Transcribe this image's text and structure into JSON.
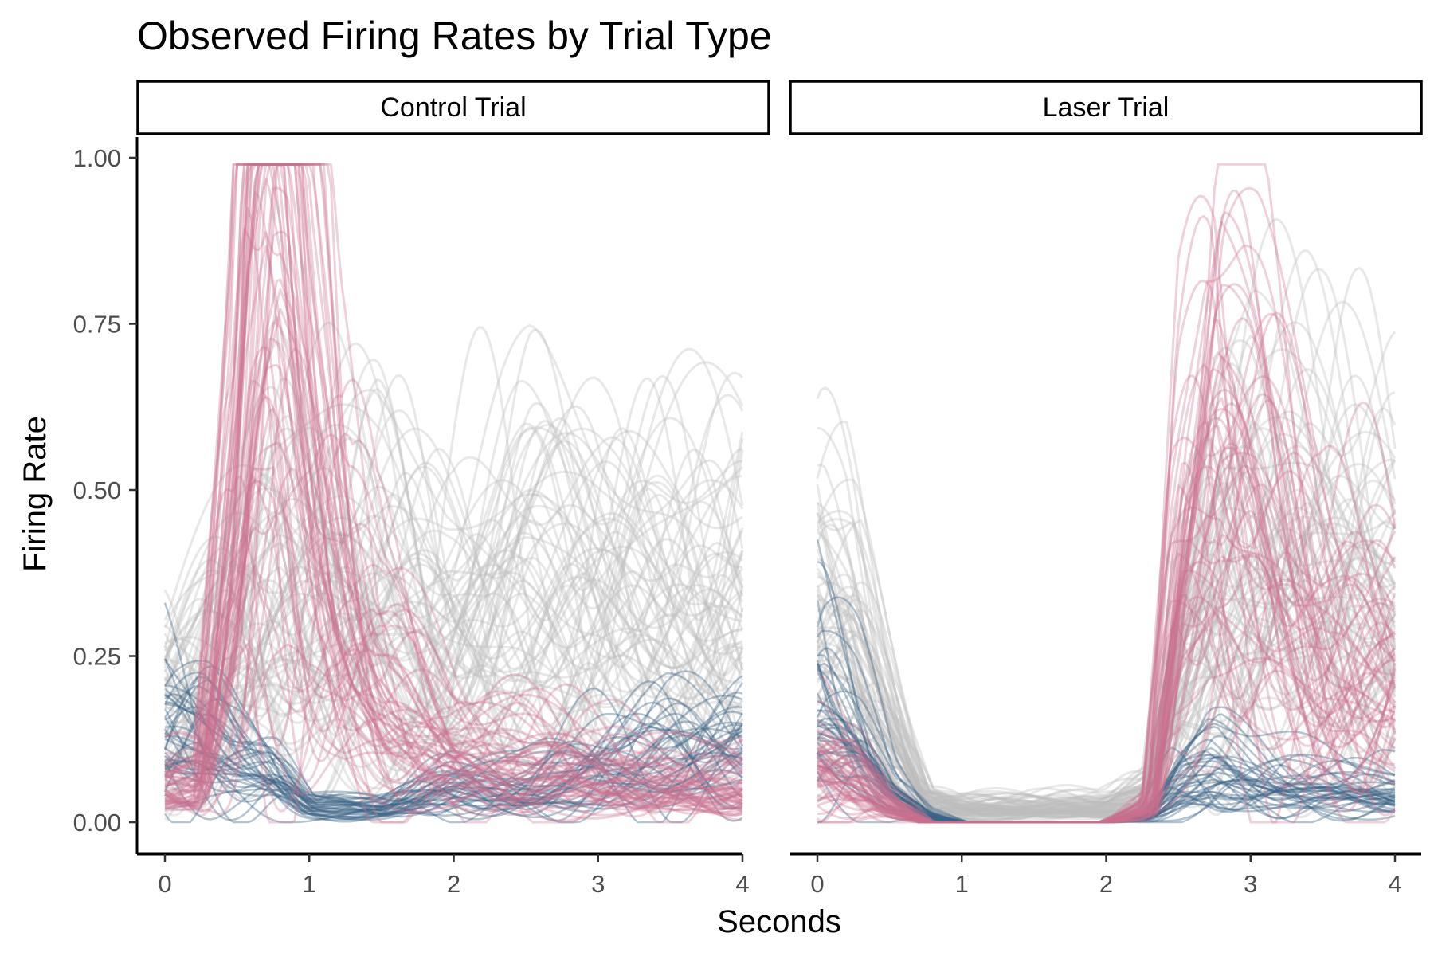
{
  "chart_data": {
    "type": "line",
    "title": "Observed Firing Rates by Trial Type",
    "xlabel": "Seconds",
    "ylabel": "Firing Rate",
    "xlim": [
      0,
      4
    ],
    "ylim": [
      0,
      1
    ],
    "x_ticks": [
      0,
      1,
      2,
      3,
      4
    ],
    "y_ticks": [
      "0.00",
      "0.25",
      "0.50",
      "0.75",
      "1.00"
    ],
    "grid": false,
    "legend": "none",
    "colors": {
      "gray": "#bdbdbd",
      "pink": "#c96f8f",
      "blue": "#3c6585"
    },
    "panels": [
      {
        "label": "Control Trial",
        "series": [
          {
            "group": "gray",
            "x": [
              0,
              0.25,
              0.5,
              0.75,
              1,
              1.5,
              2,
              2.5,
              3,
              3.5,
              4
            ],
            "y": [
              0.15,
              0.2,
              0.25,
              0.3,
              0.3,
              0.32,
              0.3,
              0.32,
              0.3,
              0.3,
              0.3
            ]
          },
          {
            "group": "pink",
            "x": [
              0,
              0.25,
              0.5,
              0.6,
              0.75,
              0.85,
              1,
              1.25,
              1.5,
              2,
              2.5,
              3,
              3.5,
              4
            ],
            "y": [
              0.05,
              0.05,
              0.4,
              0.7,
              0.88,
              0.8,
              0.55,
              0.3,
              0.18,
              0.1,
              0.08,
              0.06,
              0.06,
              0.05
            ]
          },
          {
            "group": "blue",
            "x": [
              0,
              0.25,
              0.5,
              0.75,
              1,
              1.5,
              2,
              2.5,
              3,
              3.5,
              4
            ],
            "y": [
              0.14,
              0.12,
              0.08,
              0.06,
              0.02,
              0.02,
              0.05,
              0.05,
              0.08,
              0.1,
              0.1
            ]
          }
        ]
      },
      {
        "label": "Laser Trial",
        "series": [
          {
            "group": "gray",
            "x": [
              0,
              0.25,
              0.5,
              0.75,
              1,
              1.5,
              2,
              2.3,
              2.5,
              2.75,
              3,
              3.5,
              4
            ],
            "y": [
              0.25,
              0.22,
              0.12,
              0.03,
              0.02,
              0.02,
              0.02,
              0.04,
              0.2,
              0.32,
              0.35,
              0.32,
              0.3
            ]
          },
          {
            "group": "pink",
            "x": [
              0,
              0.25,
              0.5,
              0.75,
              1,
              1.5,
              2,
              2.3,
              2.5,
              2.75,
              3,
              3.5,
              4
            ],
            "y": [
              0.08,
              0.06,
              0.02,
              0.0,
              0.0,
              0.0,
              0.0,
              0.02,
              0.3,
              0.45,
              0.4,
              0.25,
              0.2
            ]
          },
          {
            "group": "blue",
            "x": [
              0,
              0.25,
              0.5,
              0.75,
              1,
              1.5,
              2,
              2.3,
              2.5,
              2.75,
              3,
              3.5,
              4
            ],
            "y": [
              0.18,
              0.12,
              0.04,
              0.01,
              0.0,
              0.0,
              0.0,
              0.01,
              0.05,
              0.07,
              0.06,
              0.05,
              0.04
            ]
          }
        ]
      }
    ]
  }
}
